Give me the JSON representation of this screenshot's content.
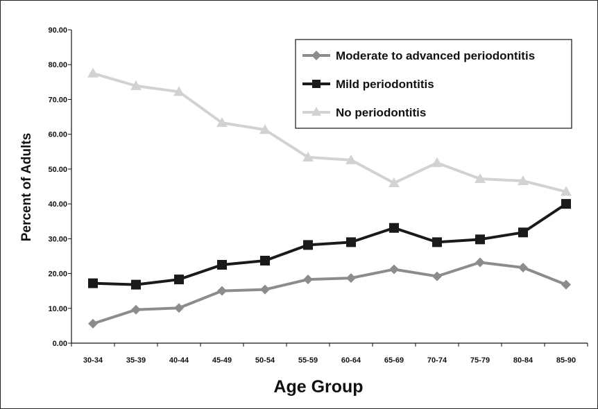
{
  "chart_data": {
    "type": "line",
    "xlabel": "Age Group",
    "ylabel": "Percent of Adults",
    "ylim": [
      0,
      90
    ],
    "yticks": [
      "0.00",
      "10.00",
      "20.00",
      "30.00",
      "40.00",
      "50.00",
      "60.00",
      "70.00",
      "80.00",
      "90.00"
    ],
    "categories": [
      "30-34",
      "35-39",
      "40-44",
      "45-49",
      "50-54",
      "55-59",
      "60-64",
      "65-69",
      "70-74",
      "75-79",
      "80-84",
      "85-90"
    ],
    "legend_position": "top-right",
    "grid": false,
    "series": [
      {
        "name": "Moderate to advanced periodontitis",
        "color": "#8c8c8c",
        "marker": "diamond",
        "values": [
          5.6,
          9.6,
          10.1,
          15.0,
          15.4,
          18.3,
          18.7,
          21.2,
          19.2,
          23.2,
          21.7,
          16.8
        ]
      },
      {
        "name": "Mild periodontitis",
        "color": "#1a1a1a",
        "marker": "square",
        "values": [
          17.2,
          16.8,
          18.3,
          22.5,
          23.7,
          28.2,
          29.0,
          33.1,
          29.0,
          29.8,
          31.8,
          40.0
        ]
      },
      {
        "name": "No periodontitis",
        "color": "#d2d2d2",
        "marker": "triangle",
        "values": [
          77.5,
          73.9,
          72.2,
          63.3,
          61.3,
          53.4,
          52.6,
          46.0,
          51.8,
          47.2,
          46.6,
          43.5
        ]
      }
    ]
  }
}
